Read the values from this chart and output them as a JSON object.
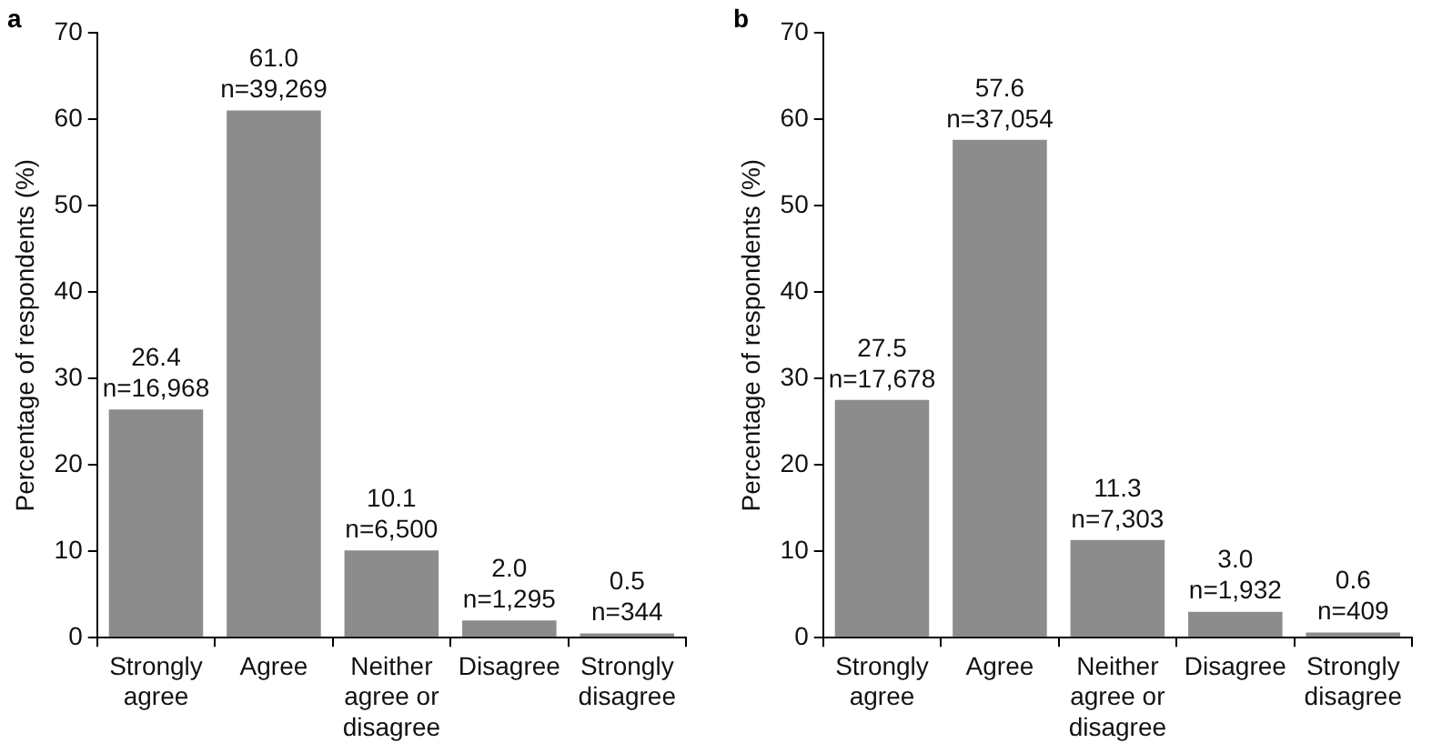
{
  "chart_data": [
    {
      "type": "bar",
      "title": "a",
      "ylabel": "Percentage of respondents (%)",
      "categories": [
        "Strongly agree",
        "Agree",
        "Neither agree or disagree",
        "Disagree",
        "Strongly disagree"
      ],
      "values": [
        26.4,
        61.0,
        10.1,
        2.0,
        0.5
      ],
      "value_labels": [
        "26.4\nn=16,968",
        "61.0\nn=39,269",
        "10.1\nn=6,500",
        "2.0\nn=1,295",
        "0.5\nn=344"
      ],
      "color": "#8c8c8c",
      "ylim": [
        0,
        70
      ],
      "yticks": [
        0,
        10,
        20,
        30,
        40,
        50,
        60,
        70
      ],
      "grid": false,
      "legend": false
    },
    {
      "type": "bar",
      "title": "b",
      "ylabel": "Percentage of respondents (%)",
      "categories": [
        "Strongly agree",
        "Agree",
        "Neither agree or disagree",
        "Disagree",
        "Strongly disagree"
      ],
      "values": [
        27.5,
        57.6,
        11.3,
        3.0,
        0.6
      ],
      "value_labels": [
        "27.5\nn=17,678",
        "57.6\nn=37,054",
        "11.3\nn=7,303",
        "3.0\nn=1,932",
        "0.6\nn=409"
      ],
      "color": "#8c8c8c",
      "ylim": [
        0,
        70
      ],
      "yticks": [
        0,
        10,
        20,
        30,
        40,
        50,
        60,
        70
      ],
      "grid": false,
      "legend": false
    }
  ]
}
